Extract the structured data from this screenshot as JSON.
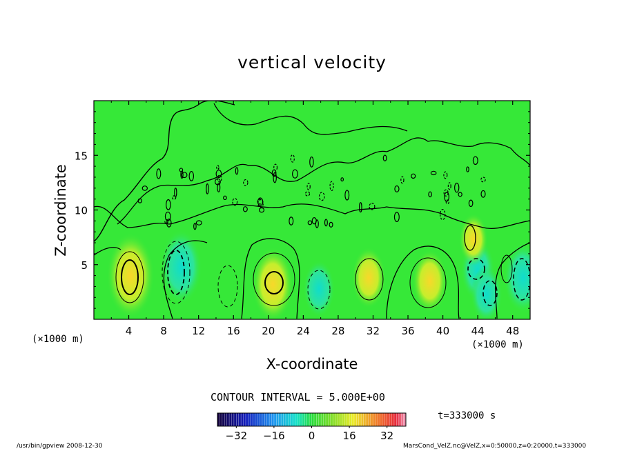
{
  "chart_data": {
    "type": "heatmap",
    "title": "vertical velocity",
    "xlabel": "X-coordinate",
    "ylabel": "Z-coordinate",
    "x_unit_left": "(×1000 m)",
    "x_unit_right": "(×1000 m)",
    "xlim": [
      0,
      50
    ],
    "ylim": [
      0,
      20
    ],
    "x_ticks": [
      4,
      8,
      12,
      16,
      20,
      24,
      28,
      32,
      36,
      40,
      44,
      48
    ],
    "y_ticks": [
      5,
      10,
      15
    ],
    "contour_interval_text": "CONTOUR INTERVAL = 5.000E+00",
    "colorbar": {
      "range": [
        -40,
        40
      ],
      "ticks": [
        -32,
        -16,
        0,
        16,
        32
      ]
    },
    "extrema": [
      {
        "x": 4.2,
        "z": 4.0,
        "value": 25,
        "sign": "positive"
      },
      {
        "x": 10.0,
        "z": 4.8,
        "value": -20,
        "sign": "negative"
      },
      {
        "x": 20.5,
        "z": 3.2,
        "value": 20,
        "sign": "positive"
      },
      {
        "x": 25.8,
        "z": 2.8,
        "value": -12,
        "sign": "negative"
      },
      {
        "x": 31.5,
        "z": 3.8,
        "value": 14,
        "sign": "positive"
      },
      {
        "x": 38.5,
        "z": 3.5,
        "value": 15,
        "sign": "positive"
      },
      {
        "x": 44.0,
        "z": 4.5,
        "value": -14,
        "sign": "negative"
      },
      {
        "x": 45.0,
        "z": 2.3,
        "value": -12,
        "sign": "negative"
      },
      {
        "x": 49.2,
        "z": 3.8,
        "value": -18,
        "sign": "negative"
      },
      {
        "x": 43.5,
        "z": 7.3,
        "value": 10,
        "sign": "positive"
      }
    ],
    "time_text": "t=333000 s"
  },
  "footer": {
    "left": "/usr/bin/gpview   2008-12-30",
    "right": "MarsCond_VelZ.nc@VelZ,x=0:50000,z=0:20000,t=333000"
  },
  "colors": {
    "background_field": "#36e838",
    "positive": "#f2e82a",
    "negative": "#1ee0dc"
  }
}
